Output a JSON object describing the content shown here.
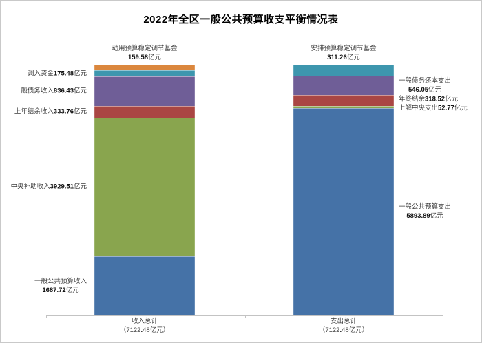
{
  "page": {
    "title": "2022年全区一般公共预算收支平衡情况表"
  },
  "chart_data": {
    "type": "bar",
    "subtype": "stacked-column",
    "title": "2022年全区一般公共预算收支平衡情况表",
    "unit": "亿元",
    "grid": false,
    "legend": false,
    "y_axis_visible": false,
    "x_axis_color": "#c3c3c3",
    "total_per_bar": 7122.48,
    "categories": [
      "收入总计",
      "支出总计"
    ],
    "bars": [
      {
        "category": "收入总计",
        "total": 7122.48,
        "total_label": "（7122.48亿元）",
        "segments": [
          {
            "label": "动用预算稳定调节基金",
            "value": 159.58,
            "color": "#DB873D",
            "label_side": "top",
            "two_line": true
          },
          {
            "label": "调入资金",
            "value": 175.48,
            "color": "#3D96AE",
            "label_side": "left",
            "two_line": false
          },
          {
            "label": "一般债务收入",
            "value": 836.43,
            "color": "#6F5E97",
            "label_side": "left",
            "two_line": false
          },
          {
            "label": "上年结余收入",
            "value": 333.76,
            "color": "#AA4643",
            "label_side": "left",
            "two_line": false
          },
          {
            "label": "中央补助收入",
            "value": 3929.51,
            "color": "#89A54E",
            "label_side": "left",
            "two_line": false
          },
          {
            "label": "一般公共预算收入",
            "value": 1687.72,
            "color": "#4572A7",
            "label_side": "left",
            "two_line": true
          }
        ]
      },
      {
        "category": "支出总计",
        "total": 7122.48,
        "total_label": "（7122.48亿元）",
        "segments": [
          {
            "label": "安排预算稳定调节基金",
            "value": 311.26,
            "color": "#3D96AE",
            "label_side": "top",
            "two_line": true
          },
          {
            "label": "一般债务还本支出",
            "value": 546.05,
            "color": "#6F5E97",
            "label_side": "right",
            "two_line": true
          },
          {
            "label": "年终结余",
            "value": 318.52,
            "color": "#AA4643",
            "label_side": "right",
            "two_line": false
          },
          {
            "label": "上解中央支出",
            "value": 52.77,
            "color": "#89A54E",
            "label_side": "right",
            "two_line": false
          },
          {
            "label": "一般公共预算支出",
            "value": 5893.89,
            "color": "#4572A7",
            "label_side": "right",
            "two_line": true
          }
        ]
      }
    ]
  }
}
